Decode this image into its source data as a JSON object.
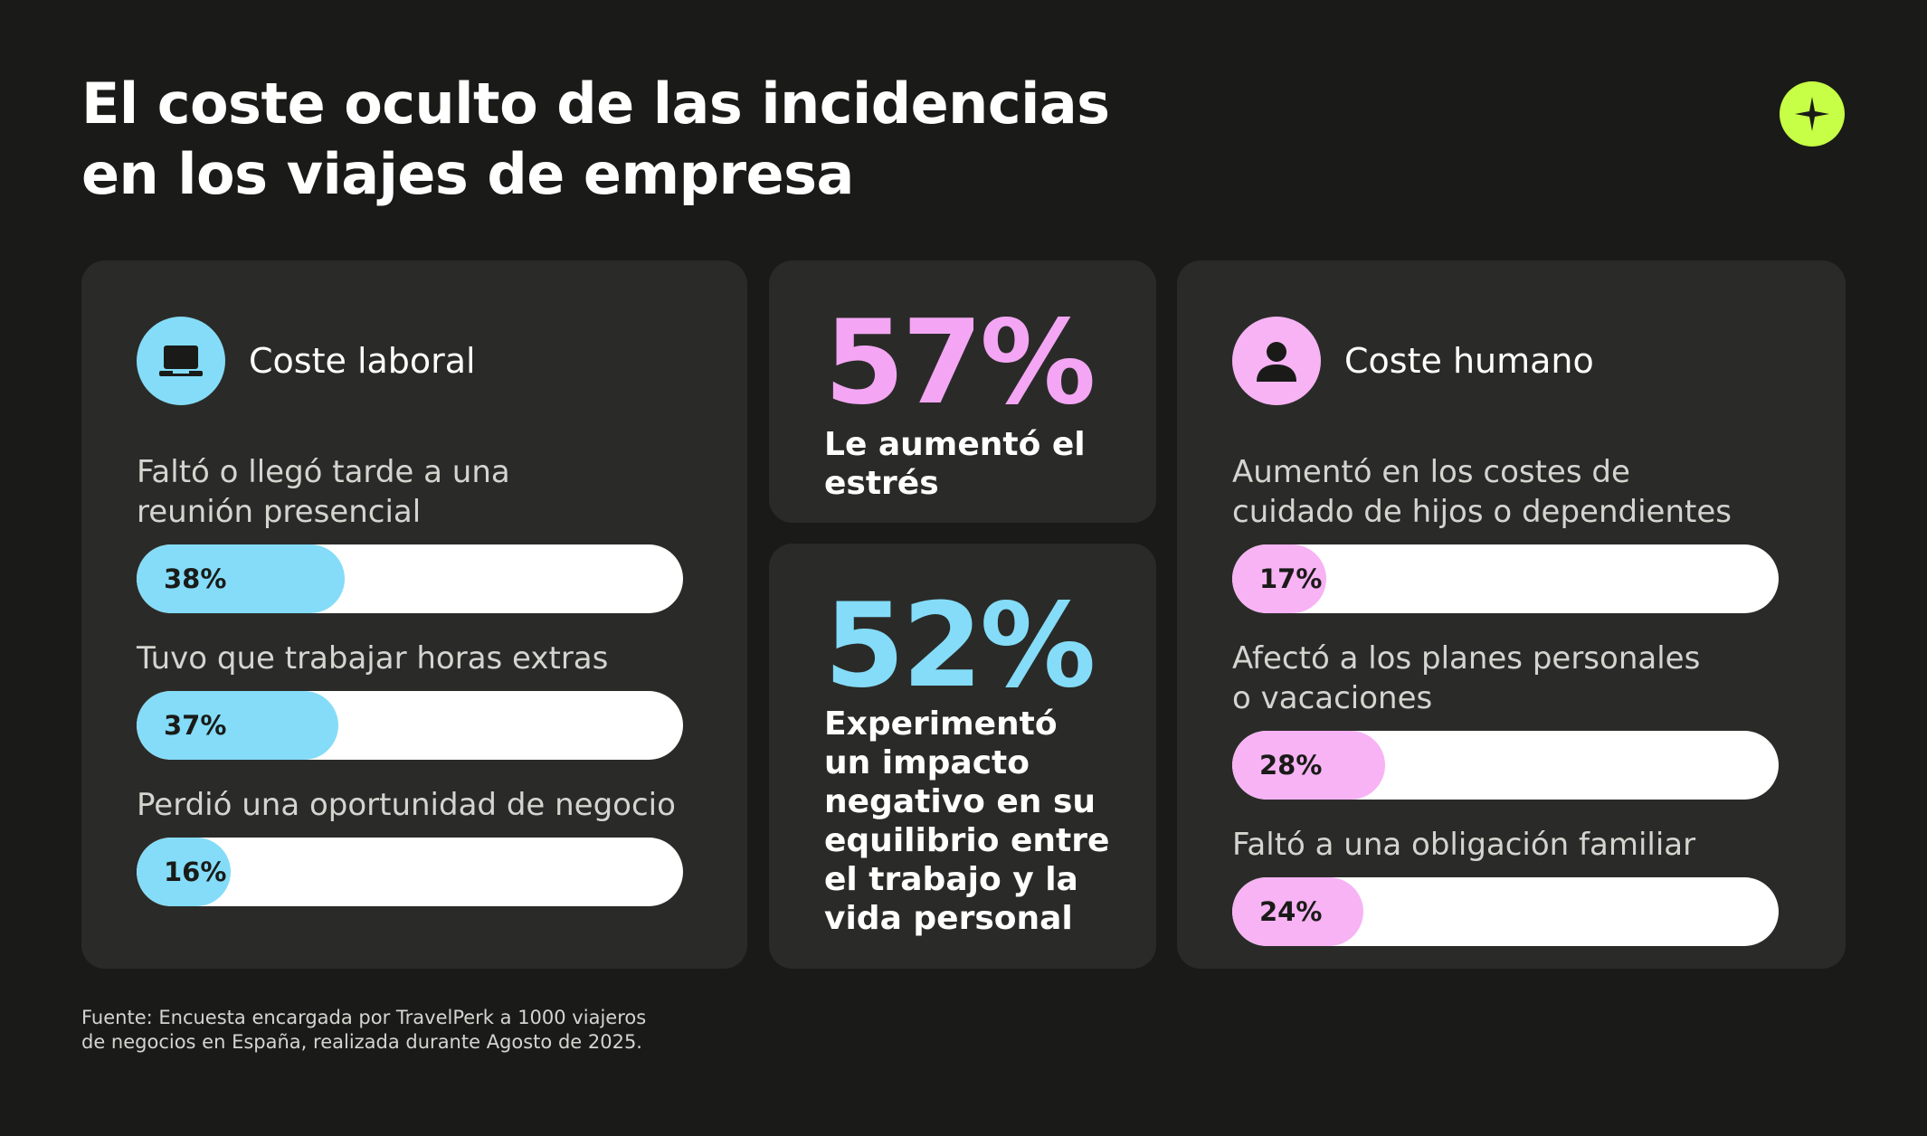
{
  "colors": {
    "background": "#1a1b18",
    "card": "#2a2b28",
    "blue_accent": "#84dcf8",
    "pink_accent": "#f7b3f4",
    "pink_text": "#f4a6f4",
    "lime_accent": "#c6ff45"
  },
  "title": {
    "line1": "El coste oculto de las incidencias",
    "line2": "en los viajes de empresa"
  },
  "brand_icon": "plus-compass-icon",
  "labor_card": {
    "icon": "laptop-icon",
    "heading": "Coste laboral",
    "metrics": [
      {
        "label_lines": [
          "Faltó o llegó tarde a una",
          "reunión presencial"
        ],
        "value": "38%",
        "fraction": 0.38
      },
      {
        "label_lines": [
          "Tuvo que trabajar horas extras"
        ],
        "value": "37%",
        "fraction": 0.37
      },
      {
        "label_lines": [
          "Perdió una oportunidad de negocio"
        ],
        "value": "16%",
        "fraction": 0.16
      }
    ]
  },
  "stress_card": {
    "value": "57%",
    "text_lines": [
      "Le aumentó el",
      "estrés"
    ]
  },
  "balance_card": {
    "value": "52%",
    "text_lines": [
      "Experimentó",
      "un impacto",
      "negativo en su",
      "equilibrio entre",
      "el trabajo y la",
      "vida personal"
    ]
  },
  "human_card": {
    "icon": "person-icon",
    "heading": "Coste humano",
    "metrics": [
      {
        "label_lines": [
          "Aumentó en los costes de",
          "cuidado de hijos o dependientes"
        ],
        "value": "17%",
        "fraction": 0.17
      },
      {
        "label_lines": [
          "Afectó a los planes personales",
          "o vacaciones"
        ],
        "value": "28%",
        "fraction": 0.28
      },
      {
        "label_lines": [
          "Faltó a una obligación familiar"
        ],
        "value": "24%",
        "fraction": 0.24
      }
    ]
  },
  "footnote": {
    "line1": "Fuente: Encuesta encargada por TravelPerk a 1000 viajeros",
    "line2": "de negocios en España, realizada durante Agosto de 2025."
  }
}
